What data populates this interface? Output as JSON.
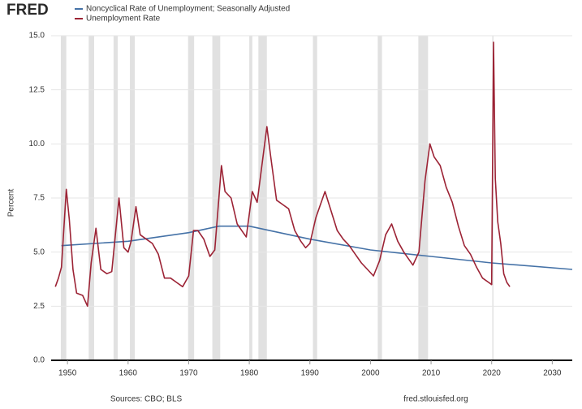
{
  "chart_data": {
    "type": "line",
    "brand": "FRED",
    "y_label": "Percent",
    "source": "Sources: CBO; BLS",
    "site": "fred.stlouisfed.org",
    "xlim": [
      1947.3,
      2033.3
    ],
    "xticks": [
      1950,
      1960,
      1970,
      1980,
      1990,
      2000,
      2010,
      2020,
      2030
    ],
    "ylim": [
      0,
      15
    ],
    "yticks": [
      {
        "value": 0,
        "label": "0.0"
      },
      {
        "value": 2.5,
        "label": "2.5"
      },
      {
        "value": 5,
        "label": "5.0"
      },
      {
        "value": 7.5,
        "label": "7.5"
      },
      {
        "value": 10,
        "label": "10.0"
      },
      {
        "value": 12.5,
        "label": "12.5"
      },
      {
        "value": 15,
        "label": "15.0"
      }
    ],
    "grid": true,
    "recession_color": "#e1e1e1",
    "recessions": [
      [
        1948.9,
        1949.8
      ],
      [
        1953.5,
        1954.4
      ],
      [
        1957.6,
        1958.3
      ],
      [
        1960.3,
        1961.1
      ],
      [
        1969.9,
        1970.9
      ],
      [
        1973.9,
        1975.2
      ],
      [
        1980.0,
        1980.5
      ],
      [
        1981.5,
        1982.9
      ],
      [
        1990.5,
        1991.2
      ],
      [
        2001.2,
        2001.9
      ],
      [
        2007.9,
        2009.5
      ],
      [
        2020.1,
        2020.3
      ]
    ],
    "series": [
      {
        "name": "Noncyclical Rate of Unemployment; Seasonally Adjusted",
        "color": "#4572a7",
        "x": [
          1949,
          1960,
          1970,
          1975,
          1980,
          1985,
          1990,
          2000,
          2010,
          2020,
          2033.3
        ],
        "values": [
          5.3,
          5.5,
          5.9,
          6.2,
          6.2,
          5.9,
          5.6,
          5.1,
          4.8,
          4.5,
          4.2
        ]
      },
      {
        "name": "Unemployment Rate",
        "color": "#9c2335",
        "x": [
          1948.0,
          1948.5,
          1949.0,
          1949.8,
          1950.3,
          1950.9,
          1951.5,
          1952.5,
          1953.3,
          1953.9,
          1954.7,
          1955.5,
          1956.5,
          1957.3,
          1958.5,
          1959.3,
          1960.0,
          1960.5,
          1961.3,
          1962.0,
          1963.0,
          1964.0,
          1965.0,
          1966.0,
          1967.0,
          1968.0,
          1969.0,
          1970.0,
          1970.8,
          1971.5,
          1972.5,
          1973.5,
          1974.3,
          1975.4,
          1976.0,
          1977.0,
          1978.0,
          1979.0,
          1979.5,
          1980.5,
          1981.3,
          1982.9,
          1983.5,
          1984.5,
          1985.5,
          1986.5,
          1987.5,
          1988.5,
          1989.3,
          1990.0,
          1991.0,
          1992.5,
          1993.5,
          1994.5,
          1995.5,
          1996.5,
          1997.5,
          1998.5,
          1999.5,
          2000.5,
          2001.5,
          2002.5,
          2003.5,
          2004.5,
          2005.5,
          2006.5,
          2007.0,
          2008.0,
          2009.0,
          2009.8,
          2010.5,
          2011.5,
          2012.5,
          2013.5,
          2014.5,
          2015.5,
          2016.5,
          2017.5,
          2018.5,
          2019.5,
          2020.0,
          2020.3,
          2020.6,
          2021.0,
          2021.5,
          2022.0,
          2022.5,
          2023.0
        ],
        "values": [
          3.4,
          3.8,
          4.3,
          7.9,
          6.5,
          4.2,
          3.1,
          3.0,
          2.5,
          4.5,
          6.1,
          4.2,
          4.0,
          4.1,
          7.5,
          5.2,
          5.0,
          5.5,
          7.1,
          5.8,
          5.6,
          5.4,
          4.9,
          3.8,
          3.8,
          3.6,
          3.4,
          3.9,
          6.0,
          6.0,
          5.6,
          4.8,
          5.1,
          9.0,
          7.8,
          7.5,
          6.3,
          5.9,
          5.7,
          7.8,
          7.3,
          10.8,
          9.5,
          7.4,
          7.2,
          7.0,
          6.0,
          5.5,
          5.2,
          5.4,
          6.6,
          7.8,
          6.9,
          6.0,
          5.6,
          5.3,
          4.9,
          4.5,
          4.2,
          3.9,
          4.6,
          5.8,
          6.3,
          5.5,
          5.0,
          4.6,
          4.4,
          5.0,
          8.3,
          10.0,
          9.4,
          9.0,
          8.0,
          7.3,
          6.2,
          5.3,
          4.9,
          4.3,
          3.8,
          3.6,
          3.5,
          14.7,
          8.4,
          6.4,
          5.4,
          4.0,
          3.6,
          3.4
        ]
      }
    ]
  }
}
